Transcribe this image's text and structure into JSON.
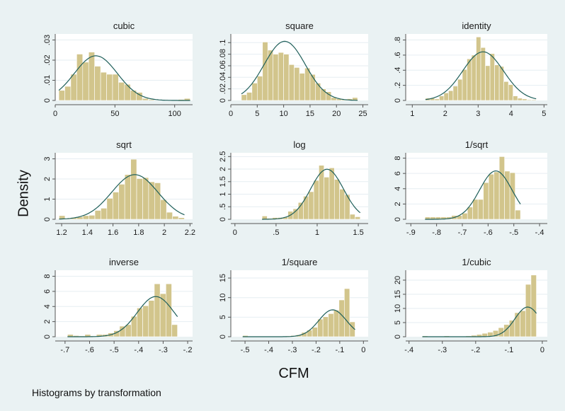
{
  "figure": {
    "ylabel": "Density",
    "xlabel": "CFM",
    "note": "Histograms by transformation"
  },
  "chart_data": [
    {
      "type": "bar",
      "title": "cubic",
      "xlim": [
        0,
        115
      ],
      "ylim": [
        0,
        0.033
      ],
      "xticks": [
        0,
        50,
        100
      ],
      "xtick_labels": [
        "0",
        "50",
        "100"
      ],
      "yticks": [
        0,
        0.01,
        0.02,
        0.03
      ],
      "ytick_labels": [
        "0",
        ".01",
        ".02",
        ".03"
      ],
      "bin_start": 3,
      "bin_width": 5,
      "values": [
        0.005,
        0.007,
        0.013,
        0.023,
        0.019,
        0.024,
        0.017,
        0.014,
        0.013,
        0.013,
        0.009,
        0.008,
        0.005,
        0.004,
        0.001,
        0.0005,
        0,
        0,
        0,
        0,
        0.0005,
        0.001
      ],
      "density": {
        "mean": 34,
        "sd": 18
      }
    },
    {
      "type": "bar",
      "title": "square",
      "xlim": [
        0,
        26
      ],
      "ylim": [
        0,
        0.115
      ],
      "xticks": [
        0,
        5,
        10,
        15,
        20,
        25
      ],
      "xtick_labels": [
        "0",
        "5",
        "10",
        "15",
        "20",
        "25"
      ],
      "yticks": [
        0,
        0.02,
        0.04,
        0.06,
        0.08,
        0.1
      ],
      "ytick_labels": [
        "0",
        ".02",
        ".04",
        ".06",
        ".08",
        ".1"
      ],
      "bin_start": 2,
      "bin_width": 1,
      "values": [
        0.01,
        0.014,
        0.03,
        0.042,
        0.101,
        0.087,
        0.08,
        0.083,
        0.08,
        0.062,
        0.057,
        0.047,
        0.056,
        0.045,
        0.03,
        0.02,
        0.015,
        0.005,
        0.003,
        0.002,
        0.003,
        0.005
      ],
      "density": {
        "mean": 10.2,
        "sd": 3.9
      }
    },
    {
      "type": "bar",
      "title": "identity",
      "xlim": [
        0.8,
        5.1
      ],
      "ylim": [
        0,
        0.88
      ],
      "xticks": [
        1,
        2,
        3,
        4,
        5
      ],
      "xtick_labels": [
        "1",
        "2",
        "3",
        "4",
        "5"
      ],
      "yticks": [
        0,
        0.2,
        0.4,
        0.6,
        0.8
      ],
      "ytick_labels": [
        "0",
        ".2",
        ".4",
        ".6",
        ".8"
      ],
      "bin_start": 1.4,
      "bin_width": 0.14,
      "values": [
        0.03,
        0.03,
        0.02,
        0.06,
        0.1,
        0.13,
        0.19,
        0.28,
        0.41,
        0.55,
        0.6,
        0.84,
        0.7,
        0.46,
        0.62,
        0.47,
        0.45,
        0.25,
        0.21,
        0.06,
        0.03,
        0.02,
        0.01,
        0.01
      ],
      "density": {
        "mean": 3.15,
        "sd": 0.62
      }
    },
    {
      "type": "bar",
      "title": "sqrt",
      "xlim": [
        1.15,
        2.22
      ],
      "ylim": [
        0,
        3.3
      ],
      "xticks": [
        1.2,
        1.4,
        1.6,
        1.8,
        2.0,
        2.2
      ],
      "xtick_labels": [
        "1.2",
        "1.4",
        "1.6",
        "1.8",
        "2",
        "2.2"
      ],
      "yticks": [
        0,
        1,
        2,
        3
      ],
      "ytick_labels": [
        "0",
        "1",
        "2",
        "3"
      ],
      "bin_start": 1.18,
      "bin_width": 0.0465,
      "values": [
        0.18,
        0.03,
        0.09,
        0.12,
        0.18,
        0.2,
        0.44,
        0.55,
        1.04,
        1.35,
        1.74,
        2.22,
        2.98,
        2.02,
        2.07,
        1.86,
        1.81,
        0.97,
        0.35,
        0.15,
        0.08
      ],
      "density": {
        "mean": 1.77,
        "sd": 0.18
      }
    },
    {
      "type": "bar",
      "title": "log",
      "xlim": [
        -0.05,
        1.62
      ],
      "ylim": [
        0,
        2.65
      ],
      "xticks": [
        0,
        0.5,
        1,
        1.5
      ],
      "xtick_labels": [
        "0",
        ".5",
        "1",
        "1.5"
      ],
      "yticks": [
        0,
        0.5,
        1,
        1.5,
        2,
        2.5
      ],
      "ytick_labels": [
        "0",
        ".5",
        "1",
        "1.5",
        "2",
        "2.5"
      ],
      "bin_start": 0.33,
      "bin_width": 0.0628,
      "values": [
        0.13,
        0.04,
        0.07,
        0.07,
        0.09,
        0.32,
        0.42,
        0.67,
        0.92,
        1.1,
        1.55,
        2.15,
        1.68,
        2.05,
        1.59,
        1.2,
        0.98,
        0.2,
        0.1
      ],
      "density": {
        "mean": 1.12,
        "sd": 0.2
      }
    },
    {
      "type": "bar",
      "title": "1/sqrt",
      "xlim": [
        -0.92,
        -0.37
      ],
      "ylim": [
        0,
        8.7
      ],
      "xticks": [
        -0.9,
        -0.8,
        -0.7,
        -0.6,
        -0.5,
        -0.4
      ],
      "xtick_labels": [
        "-.9",
        "-.8",
        "-.7",
        "-.6",
        "-.5",
        "-.4"
      ],
      "yticks": [
        0,
        2,
        4,
        6,
        8
      ],
      "ytick_labels": [
        "0",
        "2",
        "4",
        "6",
        "8"
      ],
      "bin_start": -0.845,
      "bin_width": 0.0206,
      "values": [
        0.3,
        0.3,
        0.3,
        0.3,
        0.3,
        0.5,
        0.5,
        0.8,
        1.6,
        2.6,
        2.6,
        4.8,
        5.9,
        6.2,
        8.2,
        6.3,
        6.1,
        1.2
      ],
      "density": {
        "mean": -0.57,
        "sd": 0.063
      }
    },
    {
      "type": "bar",
      "title": "inverse",
      "xlim": [
        -0.74,
        -0.18
      ],
      "ylim": [
        0,
        8.8
      ],
      "xticks": [
        -0.7,
        -0.6,
        -0.5,
        -0.4,
        -0.3,
        -0.2
      ],
      "xtick_labels": [
        "-.7",
        "-.6",
        "-.5",
        "-.4",
        "-.3",
        "-.2"
      ],
      "yticks": [
        0,
        2,
        4,
        6,
        8
      ],
      "ytick_labels": [
        "0",
        "2",
        "4",
        "6",
        "8"
      ],
      "bin_start": -0.69,
      "bin_width": 0.0236,
      "values": [
        0.3,
        0.15,
        0.1,
        0.3,
        0.1,
        0.3,
        0.3,
        0.5,
        0.8,
        1.4,
        1.6,
        2.7,
        3.8,
        4.1,
        4.8,
        7.0,
        5.7,
        7.0,
        1.6
      ],
      "density": {
        "mean": -0.33,
        "sd": 0.075
      }
    },
    {
      "type": "bar",
      "title": "1/square",
      "xlim": [
        -0.56,
        0.02
      ],
      "ylim": [
        0,
        17
      ],
      "xticks": [
        -0.5,
        -0.4,
        -0.3,
        -0.2,
        -0.1,
        0
      ],
      "xtick_labels": [
        "-.5",
        "-.4",
        "-.3",
        "-.2",
        "-.1",
        "0"
      ],
      "yticks": [
        0,
        5,
        10,
        15
      ],
      "ytick_labels": [
        "0",
        "5",
        "10",
        "15"
      ],
      "bin_start": -0.51,
      "bin_width": 0.0226,
      "values": [
        0.3,
        0.1,
        0.1,
        0.1,
        0.1,
        0.1,
        0.1,
        0.1,
        0.2,
        0.3,
        0.5,
        1.1,
        1.7,
        2.4,
        4.5,
        5.1,
        5.9,
        6.8,
        9.4,
        12.3,
        3.8
      ],
      "density": {
        "mean": -0.13,
        "sd": 0.058
      }
    },
    {
      "type": "bar",
      "title": "1/cubic",
      "xlim": [
        -0.41,
        0.015
      ],
      "ylim": [
        0,
        23.5
      ],
      "xticks": [
        -0.4,
        -0.3,
        -0.2,
        -0.1,
        0
      ],
      "xtick_labels": [
        "-.4",
        "-.3",
        "-.2",
        "-.1",
        "0"
      ],
      "yticks": [
        0,
        5,
        10,
        15,
        20
      ],
      "ytick_labels": [
        "0",
        "5",
        "10",
        "15",
        "20"
      ],
      "bin_start": -0.36,
      "bin_width": 0.0163,
      "values": [
        0.3,
        0.1,
        0.1,
        0.1,
        0.3,
        0.1,
        0.1,
        0.1,
        0.3,
        0.5,
        0.8,
        1.2,
        1.6,
        2.2,
        3.2,
        4.3,
        5.8,
        8.5,
        9.2,
        18.5,
        21.8
      ],
      "density": {
        "mean": -0.044,
        "sd": 0.038
      }
    }
  ]
}
